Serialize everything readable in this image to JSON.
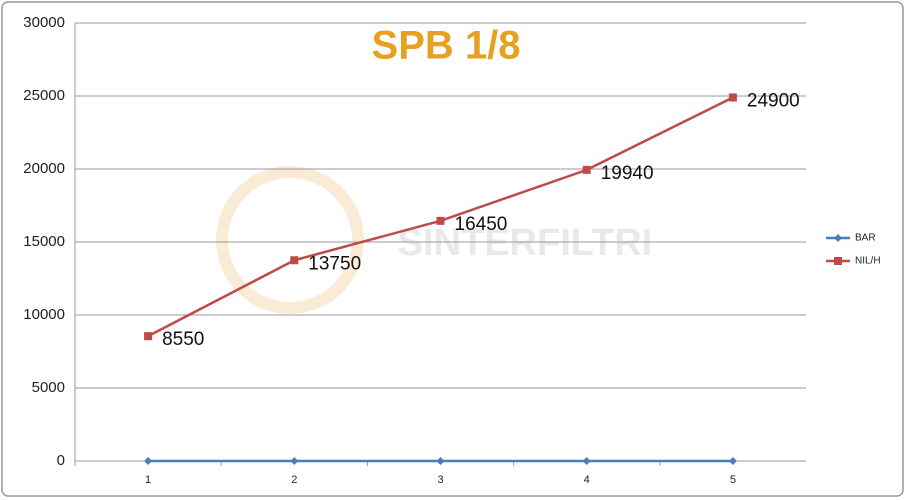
{
  "chart_data": {
    "type": "line",
    "title": "SPB 1/8",
    "watermark": "SINTERFILTRI",
    "categories": [
      "1",
      "2",
      "3",
      "4",
      "5"
    ],
    "series": [
      {
        "name": "BAR",
        "color": "#4a7ebb",
        "values": [
          0,
          0,
          0,
          0,
          0
        ]
      },
      {
        "name": "NIL/H",
        "color": "#be4b48",
        "values": [
          8550,
          13750,
          16450,
          19940,
          24900
        ]
      }
    ],
    "ylim": [
      0,
      30000
    ],
    "yticks": [
      0,
      5000,
      10000,
      15000,
      20000,
      25000,
      30000
    ],
    "grid": true
  }
}
